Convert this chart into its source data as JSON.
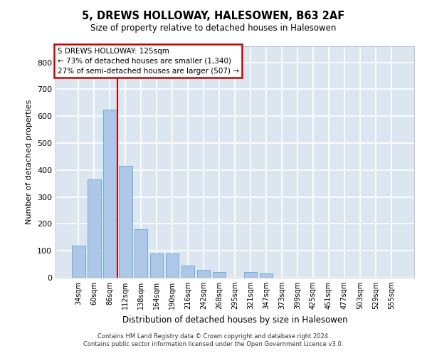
{
  "title": "5, DREWS HOLLOWAY, HALESOWEN, B63 2AF",
  "subtitle": "Size of property relative to detached houses in Halesowen",
  "xlabel": "Distribution of detached houses by size in Halesowen",
  "ylabel": "Number of detached properties",
  "categories": [
    "34sqm",
    "60sqm",
    "86sqm",
    "112sqm",
    "138sqm",
    "164sqm",
    "190sqm",
    "216sqm",
    "242sqm",
    "268sqm",
    "295sqm",
    "321sqm",
    "347sqm",
    "373sqm",
    "399sqm",
    "425sqm",
    "451sqm",
    "477sqm",
    "503sqm",
    "529sqm",
    "555sqm"
  ],
  "values": [
    120,
    365,
    625,
    415,
    180,
    90,
    90,
    45,
    30,
    20,
    0,
    20,
    15,
    0,
    0,
    0,
    0,
    0,
    0,
    0,
    0
  ],
  "bar_color": "#aec6e8",
  "bar_edge_color": "#6baed6",
  "background_color": "#dce6f1",
  "grid_color": "#ffffff",
  "annotation_line1": "5 DREWS HOLLOWAY: 125sqm",
  "annotation_line2": "← 73% of detached houses are smaller (1,340)",
  "annotation_line3": "27% of semi-detached houses are larger (507) →",
  "vline_x": 2.5,
  "vline_color": "#cc0000",
  "ylim": [
    0,
    860
  ],
  "yticks": [
    0,
    100,
    200,
    300,
    400,
    500,
    600,
    700,
    800
  ],
  "footer_line1": "Contains HM Land Registry data © Crown copyright and database right 2024.",
  "footer_line2": "Contains public sector information licensed under the Open Government Licence v3.0."
}
